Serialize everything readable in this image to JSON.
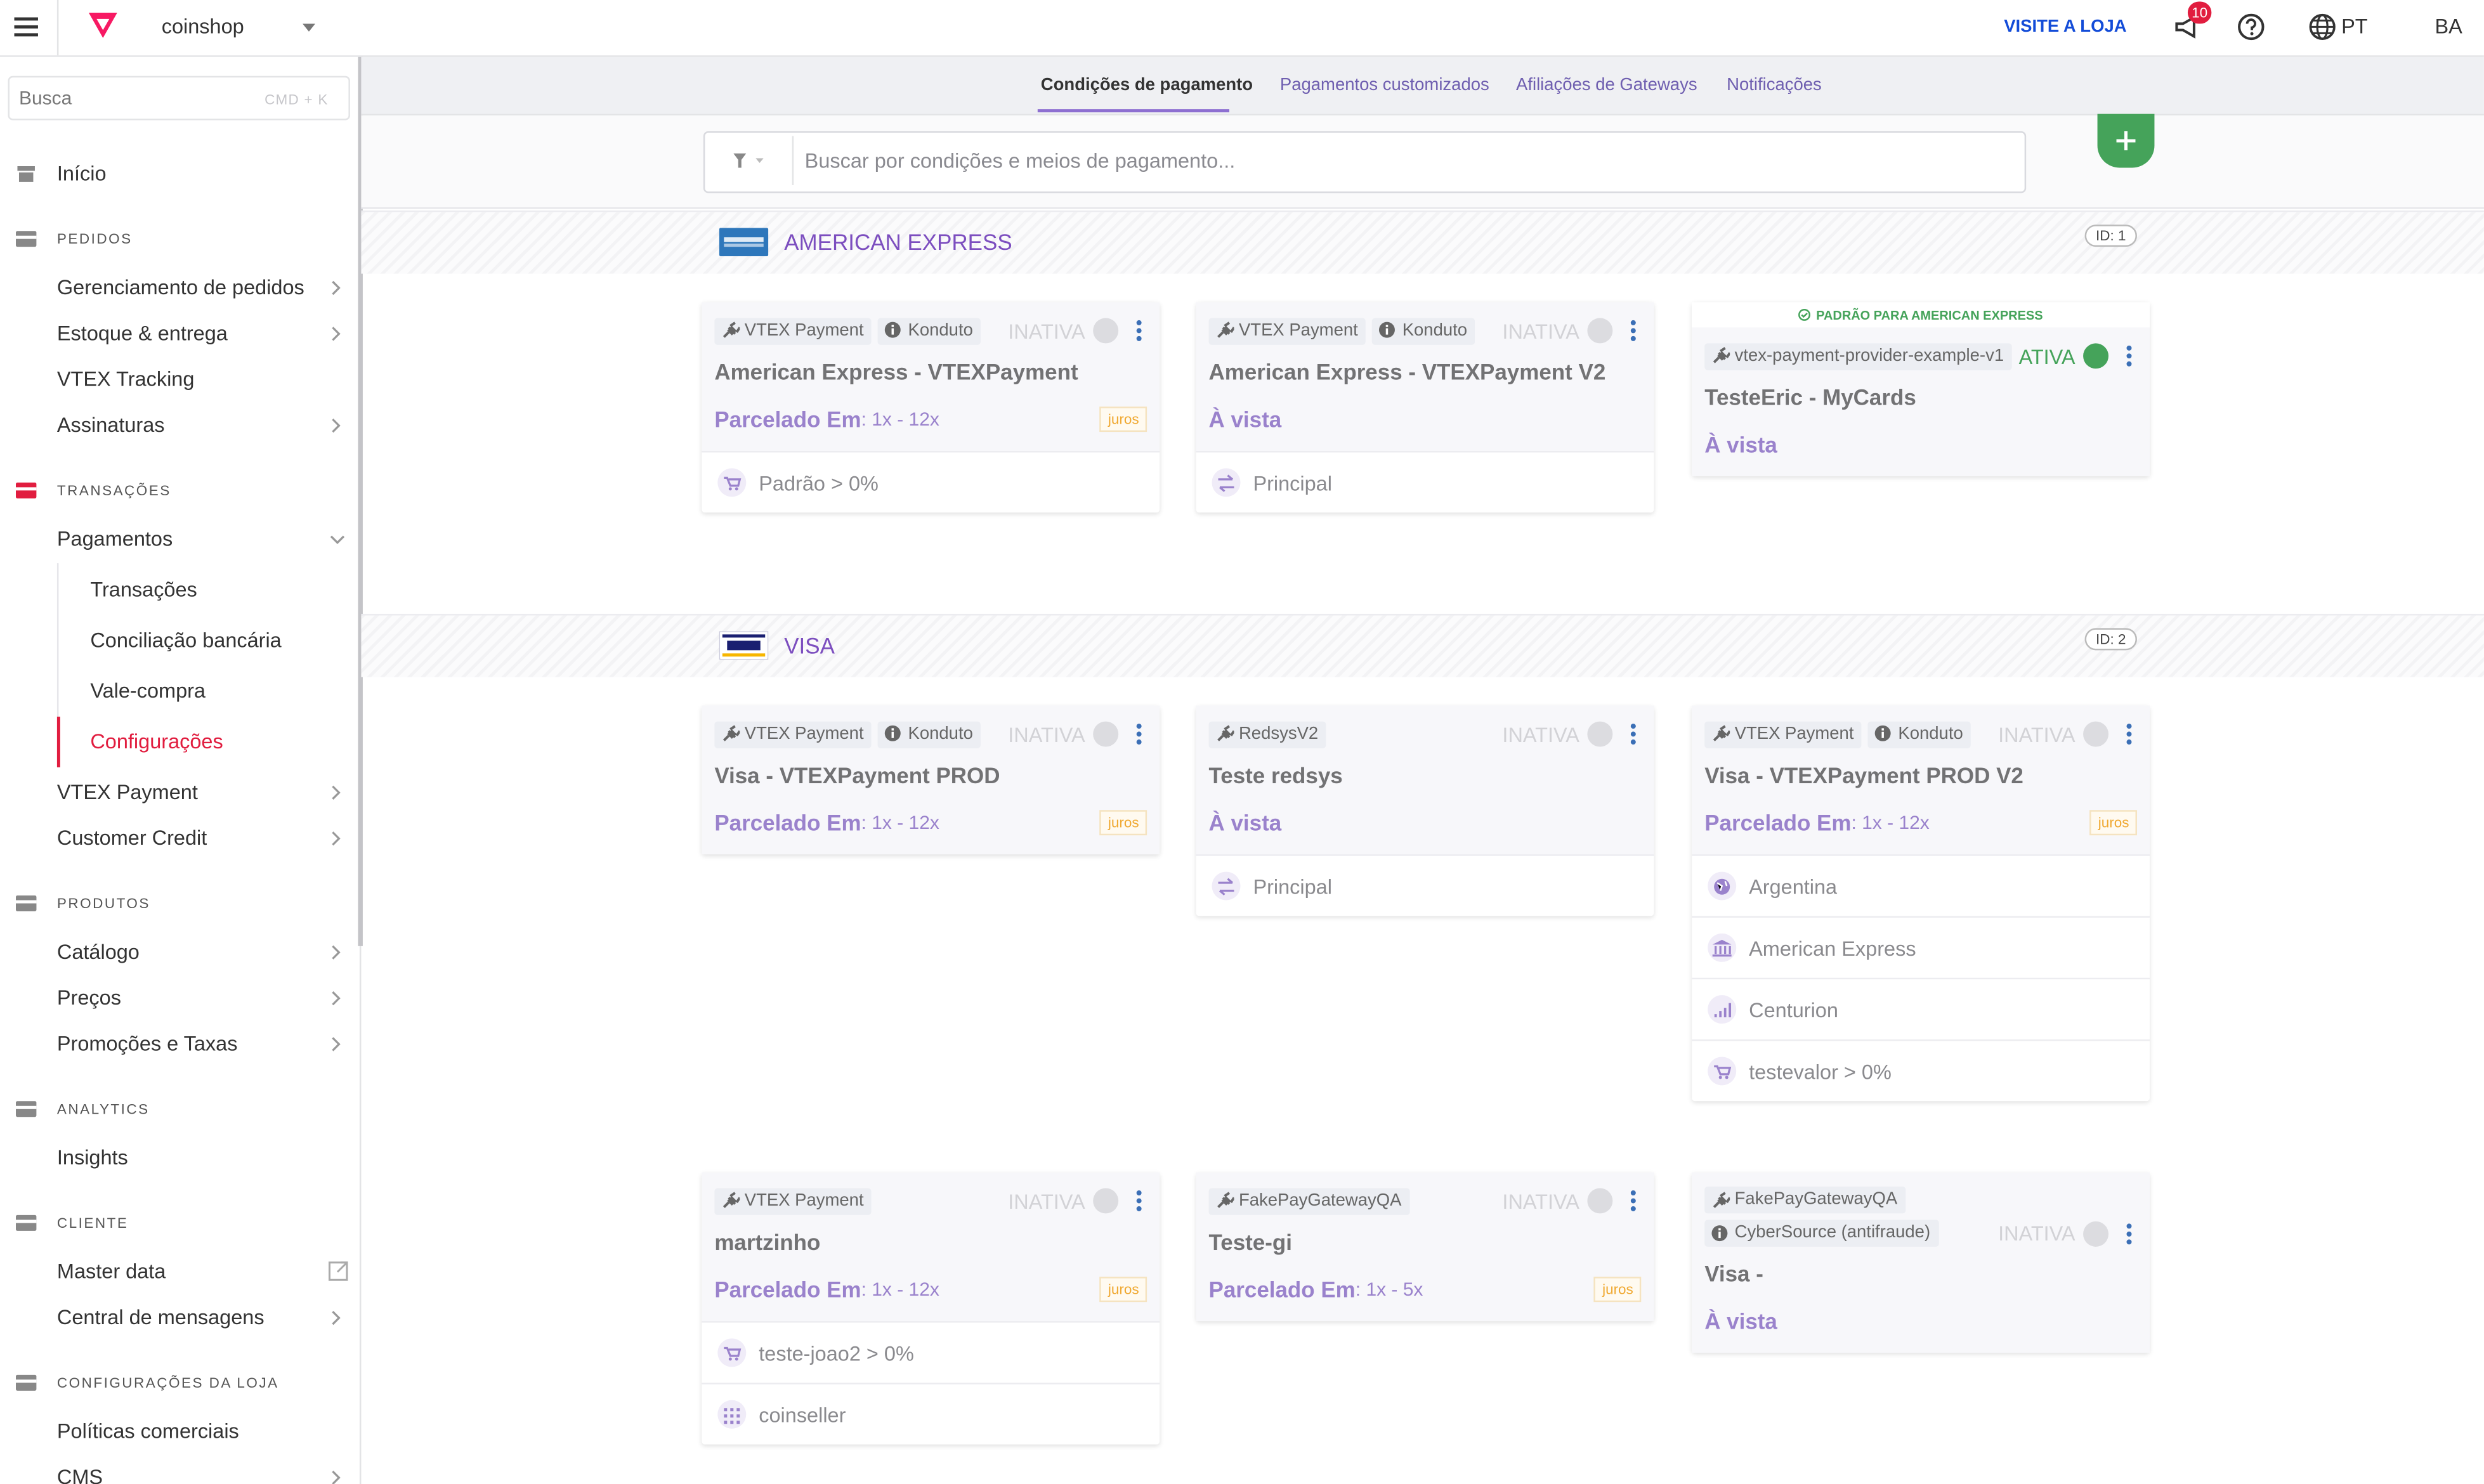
{
  "topbar": {
    "store": "coinshop",
    "visit": "VISITE A LOJA",
    "notifications": "10",
    "language": "PT",
    "user": "BA"
  },
  "sidebar": {
    "search": "Busca",
    "shortcut": "CMD + K",
    "home": "Início",
    "sections": [
      {
        "title": "PEDIDOS",
        "items": [
          {
            "label": "Gerenciamento de pedidos"
          },
          {
            "label": "Estoque & entrega"
          },
          {
            "label": "VTEX Tracking"
          },
          {
            "label": "Assinaturas"
          }
        ]
      },
      {
        "title": "TRANSAÇÕES",
        "items": [
          {
            "label": "Pagamentos",
            "children": [
              "Transações",
              "Conciliação bancária",
              "Vale-compra",
              "Configurações"
            ]
          },
          {
            "label": "VTEX Payment"
          },
          {
            "label": "Customer Credit"
          }
        ]
      },
      {
        "title": "PRODUTOS",
        "items": [
          {
            "label": "Catálogo"
          },
          {
            "label": "Preços"
          },
          {
            "label": "Promoções e Taxas"
          }
        ]
      },
      {
        "title": "ANALYTICS",
        "items": [
          {
            "label": "Insights"
          }
        ]
      },
      {
        "title": "CLIENTE",
        "items": [
          {
            "label": "Master data"
          },
          {
            "label": "Central de mensagens"
          }
        ]
      },
      {
        "title": "CONFIGURAÇÕES DA LOJA",
        "items": [
          {
            "label": "Políticas comerciais"
          },
          {
            "label": "CMS"
          }
        ]
      }
    ]
  },
  "tabs": [
    "Condições de pagamento",
    "Pagamentos customizados",
    "Afiliações de Gateways",
    "Notificações"
  ],
  "search_placeholder": "Buscar por condições e meios de pagamento...",
  "groups": [
    {
      "name": "AMERICAN EXPRESS",
      "id": "ID: 1",
      "cards": [
        {
          "connectors": [
            "VTEX Payment",
            "Konduto"
          ],
          "status": "INATIVA",
          "active": false,
          "title": "American Express - VTEXPayment",
          "installment": "Parcelado Em",
          "range": ": 1x - 12x",
          "tag": "juros",
          "rules": [
            "Padrão > 0%"
          ]
        },
        {
          "connectors": [
            "VTEX Payment",
            "Konduto"
          ],
          "status": "INATIVA",
          "active": false,
          "title": "American Express - VTEXPayment V2",
          "installment": "À vista",
          "rules": [
            "Principal"
          ]
        },
        {
          "banner": "PADRÃO PARA AMERICAN EXPRESS",
          "connectors": [
            "vtex-payment-provider-example-v1"
          ],
          "status": "ATIVA",
          "active": true,
          "title": "TesteEric - MyCards",
          "installment": "À vista",
          "rules": []
        }
      ]
    },
    {
      "name": "VISA",
      "id": "ID: 2",
      "cards": [
        {
          "connectors": [
            "VTEX Payment",
            "Konduto"
          ],
          "status": "INATIVA",
          "active": false,
          "title": "Visa - VTEXPayment PROD",
          "installment": "Parcelado Em",
          "range": ": 1x - 12x",
          "tag": "juros",
          "rules": []
        },
        {
          "connectors": [
            "RedsysV2"
          ],
          "status": "INATIVA",
          "active": false,
          "title": "Teste redsys",
          "installment": "À vista",
          "rules": [
            "Principal"
          ]
        },
        {
          "connectors": [
            "VTEX Payment",
            "Konduto"
          ],
          "status": "INATIVA",
          "active": false,
          "title": "Visa - VTEXPayment PROD V2",
          "installment": "Parcelado Em",
          "range": ": 1x - 12x",
          "tag": "juros",
          "rules": [
            "Argentina",
            "American Express",
            "Centurion",
            "testevalor > 0%"
          ]
        },
        {
          "connectors": [
            "VTEX Payment"
          ],
          "status": "INATIVA",
          "active": false,
          "title": "martzinho",
          "installment": "Parcelado Em",
          "range": ": 1x - 12x",
          "tag": "juros",
          "rules": [
            "teste-joao2 > 0%",
            "coinseller"
          ]
        },
        {
          "connectors": [
            "FakePayGatewayQA"
          ],
          "status": "INATIVA",
          "active": false,
          "title": "Teste-gi",
          "installment": "Parcelado Em",
          "range": ": 1x - 5x",
          "tag": "juros",
          "rules": []
        },
        {
          "connectors": [
            "FakePayGatewayQA",
            "CyberSource (antifraude)"
          ],
          "status": "INATIVA",
          "active": false,
          "title": "Visa -",
          "installment": "À vista",
          "rules": []
        }
      ]
    }
  ]
}
